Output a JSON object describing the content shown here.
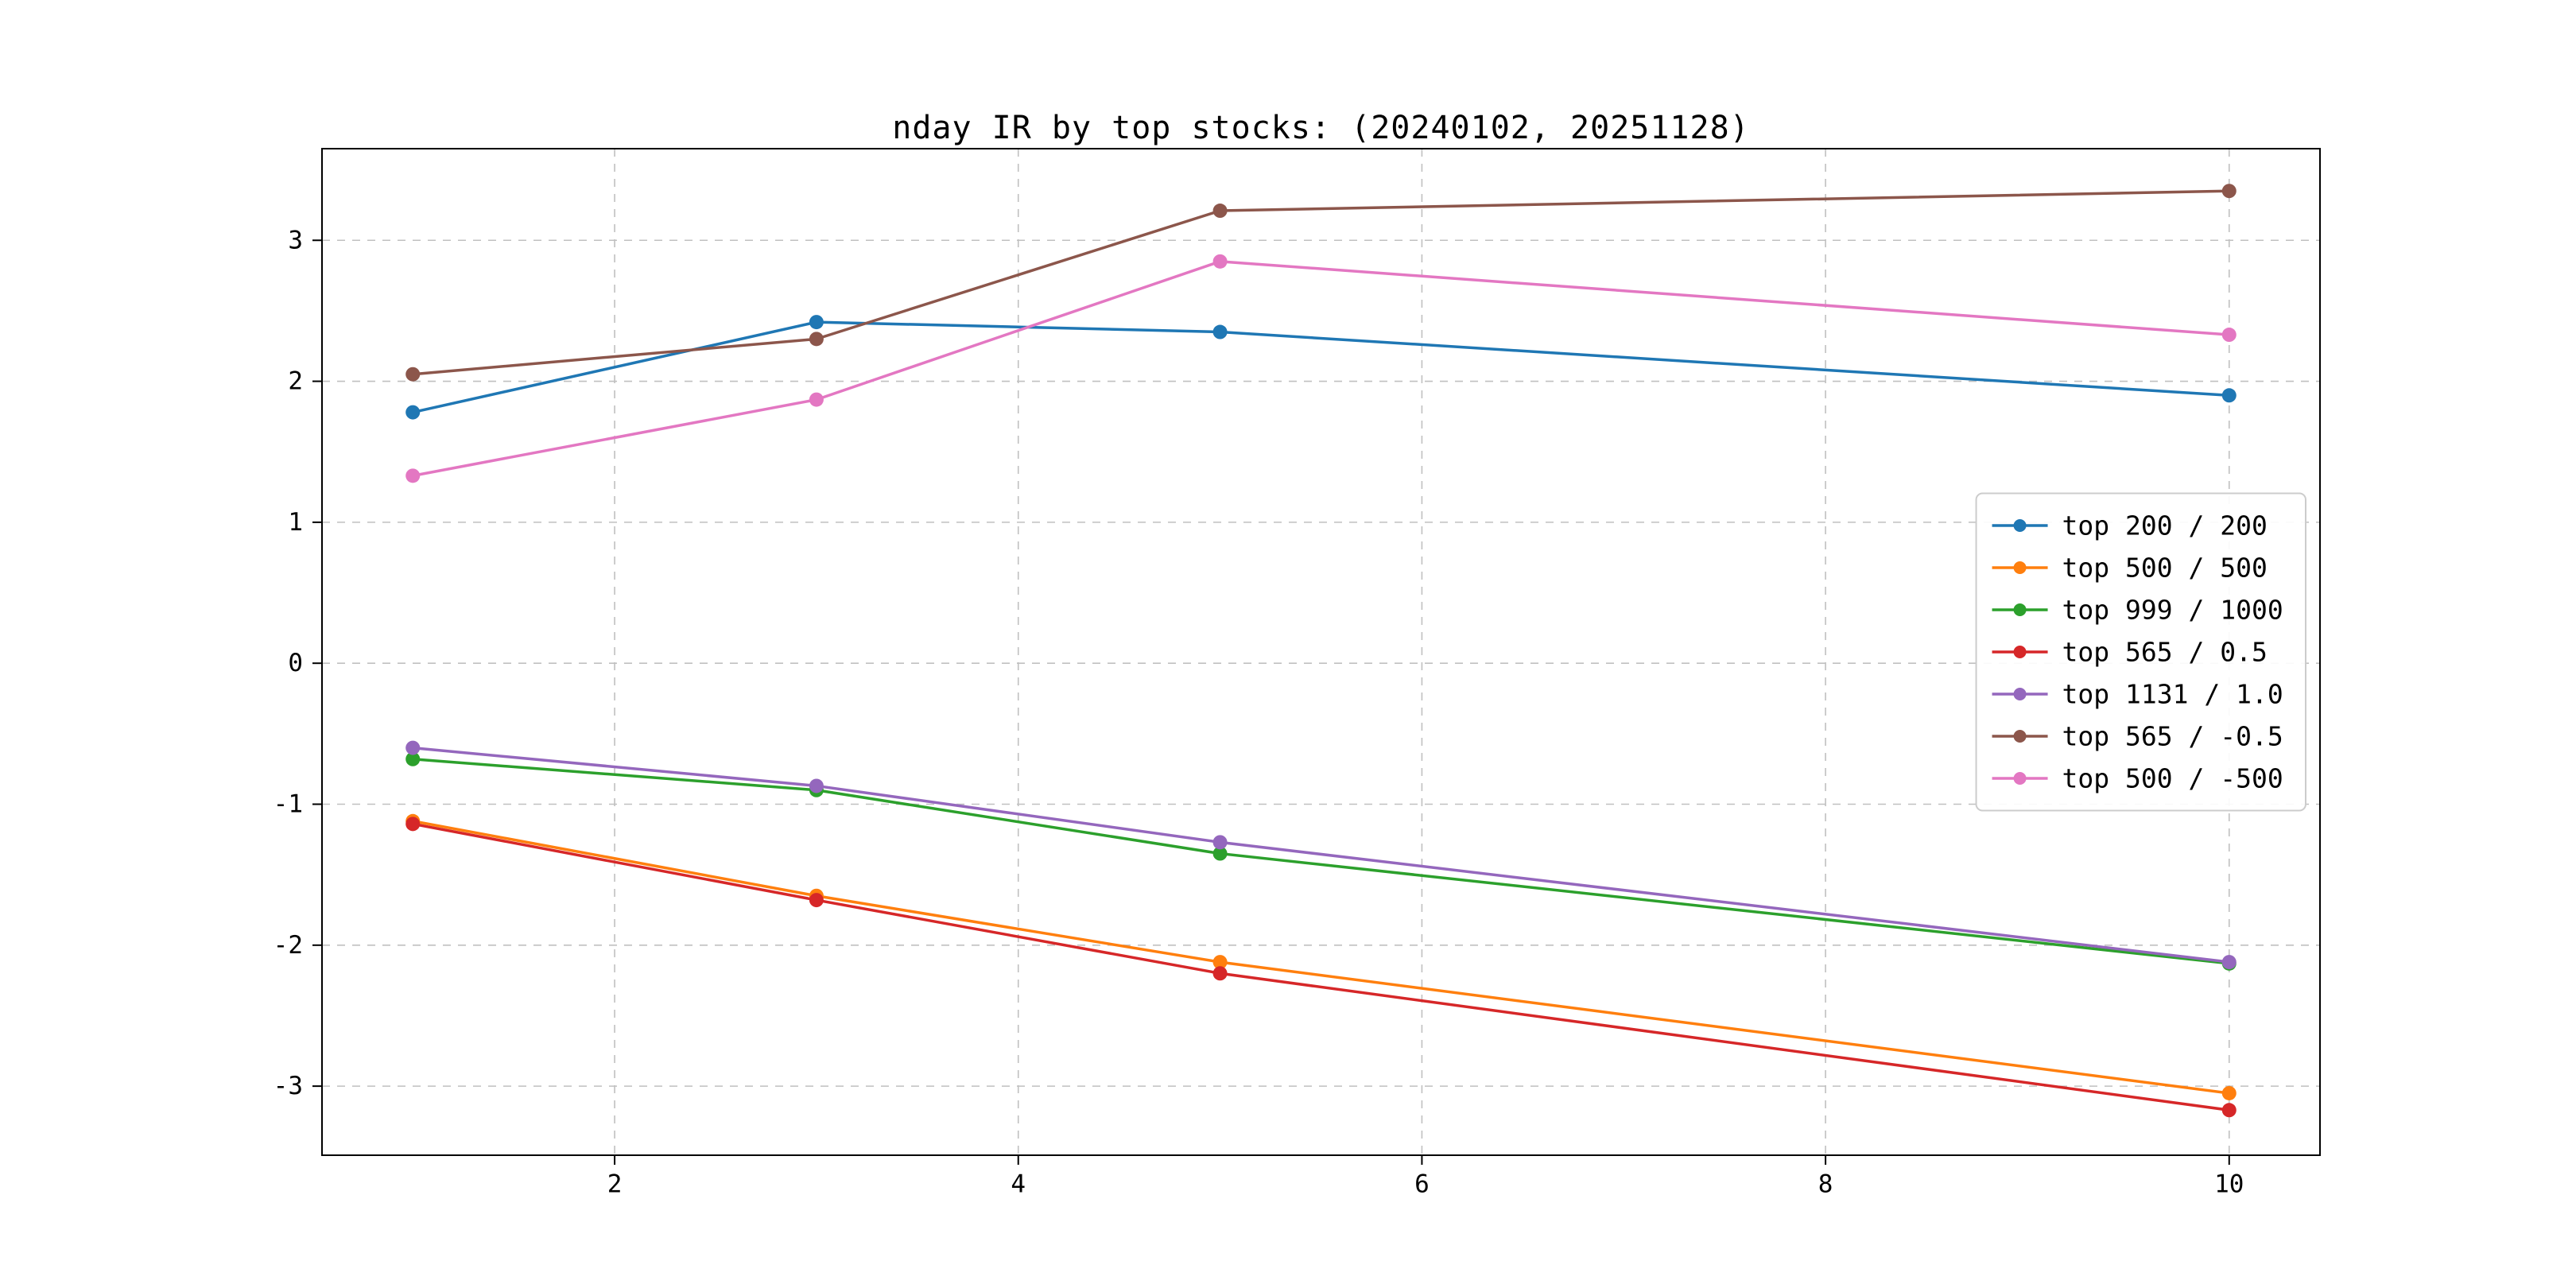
{
  "figure": {
    "background": "#ffffff",
    "axis_color": "#000000",
    "grid_color": "#c0c0c0",
    "legend_border_color": "#cccccc"
  },
  "chart_data": {
    "type": "line",
    "title": "nday IR by top stocks: (20240102, 20251128)",
    "xlabel": "",
    "ylabel": "",
    "x": [
      1,
      3,
      5,
      10
    ],
    "xlim": [
      0.55,
      10.45
    ],
    "ylim": [
      -3.49,
      3.65
    ],
    "x_ticks": [
      2,
      4,
      6,
      8,
      10
    ],
    "y_ticks": [
      -3,
      -2,
      -1,
      0,
      1,
      2,
      3
    ],
    "grid": true,
    "grid_style": "dashed",
    "marker": "circle",
    "legend_position": "center right",
    "series": [
      {
        "name": "top 200 / 200",
        "color": "#1f77b4",
        "values": [
          1.78,
          2.42,
          2.35,
          1.9
        ]
      },
      {
        "name": "top 500 / 500",
        "color": "#ff7f0e",
        "values": [
          -1.12,
          -1.65,
          -2.12,
          -3.05
        ]
      },
      {
        "name": "top 999 / 1000",
        "color": "#2ca02c",
        "values": [
          -0.68,
          -0.9,
          -1.35,
          -2.13
        ]
      },
      {
        "name": "top 565 / 0.5",
        "color": "#d62728",
        "values": [
          -1.14,
          -1.68,
          -2.2,
          -3.17
        ]
      },
      {
        "name": "top 1131 / 1.0",
        "color": "#9467bd",
        "values": [
          -0.6,
          -0.87,
          -1.27,
          -2.12
        ]
      },
      {
        "name": "top 565 / -0.5",
        "color": "#8c564b",
        "values": [
          2.05,
          2.3,
          3.21,
          3.35
        ]
      },
      {
        "name": "top 500 / -500",
        "color": "#e377c2",
        "values": [
          1.33,
          1.87,
          2.85,
          2.33
        ]
      }
    ]
  }
}
